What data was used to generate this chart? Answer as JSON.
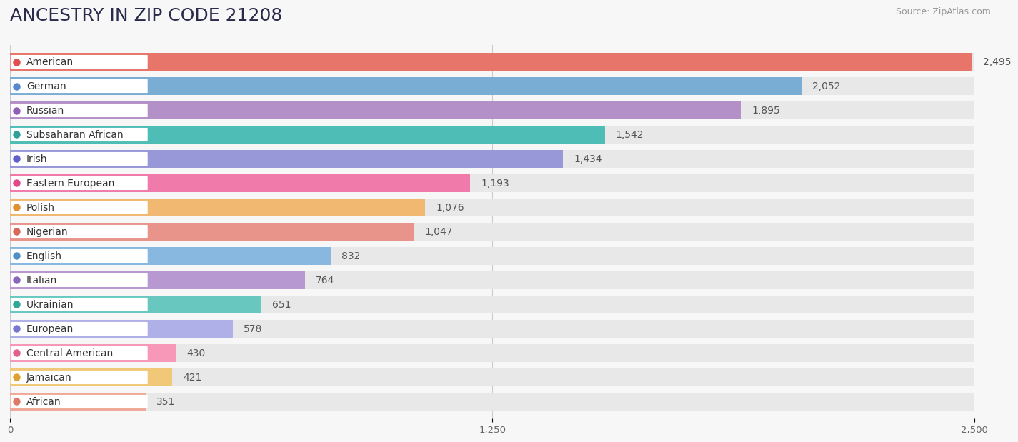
{
  "title": "ANCESTRY IN ZIP CODE 21208",
  "source": "Source: ZipAtlas.com",
  "categories": [
    "American",
    "German",
    "Russian",
    "Subsaharan African",
    "Irish",
    "Eastern European",
    "Polish",
    "Nigerian",
    "English",
    "Italian",
    "Ukrainian",
    "European",
    "Central American",
    "Jamaican",
    "African"
  ],
  "values": [
    2495,
    2052,
    1895,
    1542,
    1434,
    1193,
    1076,
    1047,
    832,
    764,
    651,
    578,
    430,
    421,
    351
  ],
  "bar_colors": [
    "#e8756a",
    "#7aadd4",
    "#b490c8",
    "#4dbdb5",
    "#9898d8",
    "#f07aaa",
    "#f0b870",
    "#e8948a",
    "#88b8e0",
    "#b898d0",
    "#68c8c0",
    "#b0b0e8",
    "#f898b8",
    "#f0c878",
    "#f0a898"
  ],
  "dot_colors": [
    "#e05050",
    "#5588cc",
    "#9060b8",
    "#30a098",
    "#6060c8",
    "#e04888",
    "#e09030",
    "#d86858",
    "#5090c8",
    "#8868b8",
    "#30a898",
    "#7878d0",
    "#e06090",
    "#e0a030",
    "#e07868"
  ],
  "xlim": [
    0,
    2500
  ],
  "xticks": [
    0,
    1250,
    2500
  ],
  "background_color": "#f7f7f7",
  "bar_bg_color": "#e8e8e8",
  "title_color": "#2a2a4a",
  "title_fontsize": 18,
  "label_fontsize": 10,
  "value_fontsize": 10,
  "source_fontsize": 9,
  "source_color": "#999999"
}
